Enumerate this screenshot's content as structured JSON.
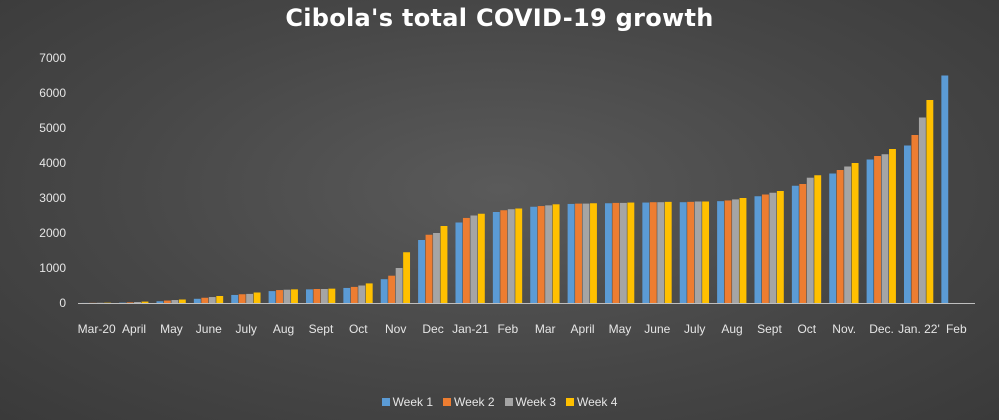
{
  "chart_data": {
    "type": "bar",
    "title": "Cibola's total COVID-19 growth",
    "xlabel": "",
    "ylabel": "",
    "ylim": [
      0,
      7000
    ],
    "yticks": [
      0,
      1000,
      2000,
      3000,
      4000,
      5000,
      6000,
      7000
    ],
    "legend_position": "bottom",
    "grid": false,
    "x_tick_labels": [
      "Mar-20",
      "April",
      "May",
      "June",
      "July",
      "Aug",
      "Sept",
      "Oct",
      "Nov",
      "Dec",
      "Jan-21",
      "Feb",
      "Mar",
      "April",
      "May",
      "June",
      "July",
      "Aug",
      "Sept",
      "Oct",
      "Nov.",
      "Dec.",
      "Jan. 22'",
      "Feb"
    ],
    "series": [
      {
        "name": "Week 1",
        "color": "#5b9bd5",
        "values": [
          2,
          10,
          50,
          120,
          230,
          340,
          390,
          430,
          680,
          1800,
          2300,
          2600,
          2750,
          2830,
          2850,
          2870,
          2880,
          2910,
          3050,
          3350,
          3700,
          4100,
          4500,
          6500
        ]
      },
      {
        "name": "Week 2",
        "color": "#ed7d31",
        "values": [
          4,
          18,
          70,
          150,
          250,
          370,
          400,
          460,
          780,
          1950,
          2430,
          2650,
          2770,
          2840,
          2860,
          2880,
          2890,
          2930,
          3100,
          3400,
          3800,
          4200,
          4800,
          null
        ]
      },
      {
        "name": "Week 3",
        "color": "#a5a5a5",
        "values": [
          6,
          28,
          85,
          170,
          260,
          380,
          400,
          500,
          1000,
          2000,
          2500,
          2680,
          2790,
          2840,
          2860,
          2880,
          2900,
          2960,
          3150,
          3580,
          3900,
          4250,
          5300,
          null
        ]
      },
      {
        "name": "Week 4",
        "color": "#ffc000",
        "values": [
          8,
          40,
          100,
          200,
          300,
          390,
          410,
          560,
          1450,
          2200,
          2550,
          2700,
          2820,
          2850,
          2870,
          2890,
          2900,
          3000,
          3200,
          3650,
          4000,
          4400,
          5800,
          null
        ]
      }
    ]
  }
}
